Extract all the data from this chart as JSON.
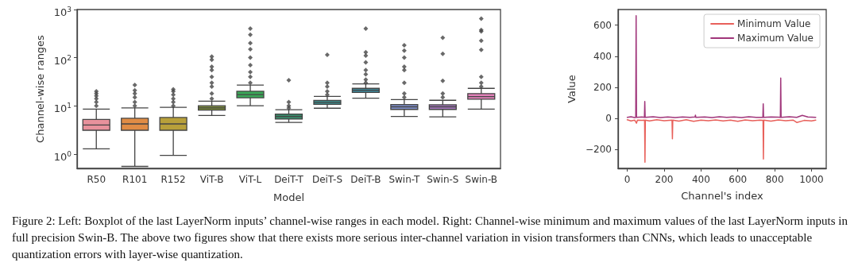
{
  "chart_data": [
    {
      "type": "box",
      "xlabel": "Model",
      "ylabel": "Channel-wise ranges",
      "log": true,
      "legend": false,
      "grid": false,
      "categories": [
        "R50",
        "R101",
        "R152",
        "ViT-B",
        "ViT-L",
        "DeiT-T",
        "DeiT-S",
        "DeiT-B",
        "Swin-T",
        "Swin-S",
        "Swin-B"
      ],
      "colors": [
        "#e8929c",
        "#e08c45",
        "#b8a03a",
        "#7a8a3a",
        "#3aa858",
        "#3a8a6a",
        "#3b8c8c",
        "#3d8a9c",
        "#8090cc",
        "#a878c0",
        "#e080b8"
      ],
      "ylim": [
        0.5,
        1000
      ],
      "yticks": [
        {
          "value": 1,
          "label": "10$^{0}$"
        },
        {
          "value": 10,
          "label": "10$^{1}$"
        },
        {
          "value": 100,
          "label": "10$^{2}$"
        },
        {
          "value": 1000,
          "label": "10$^{3}$"
        }
      ],
      "boxes": [
        {
          "low": 1.27,
          "q1": 3.1,
          "median": 4.0,
          "q3": 5.2,
          "high": 8.5,
          "outliers": [
            10,
            12,
            14,
            16,
            18,
            20
          ]
        },
        {
          "low": 0.55,
          "q1": 3.1,
          "median": 4.2,
          "q3": 5.5,
          "high": 9.0,
          "outliers": [
            10,
            12,
            15,
            18,
            21,
            27
          ]
        },
        {
          "low": 0.93,
          "q1": 3.1,
          "median": 4.2,
          "q3": 5.7,
          "high": 9.3,
          "outliers": [
            10,
            12,
            14,
            17,
            20,
            22
          ]
        },
        {
          "low": 6.3,
          "q1": 8.1,
          "median": 9.0,
          "q3": 10,
          "high": 12.5,
          "outliers": [
            14,
            18,
            25,
            30,
            40,
            55,
            65,
            90,
            105
          ]
        },
        {
          "low": 10,
          "q1": 14.7,
          "median": 17,
          "q3": 20,
          "high": 27,
          "outliers": [
            30,
            40,
            50,
            70,
            100,
            150,
            200,
            300,
            400
          ]
        },
        {
          "low": 4.5,
          "q1": 5.3,
          "median": 6.0,
          "q3": 6.7,
          "high": 8.3,
          "outliers": [
            9,
            10,
            12,
            34
          ]
        },
        {
          "low": 8.9,
          "q1": 10.7,
          "median": 11.8,
          "q3": 12.9,
          "high": 15.7,
          "outliers": [
            17,
            20,
            25,
            30,
            115
          ]
        },
        {
          "low": 14.4,
          "q1": 19,
          "median": 21,
          "q3": 23,
          "high": 28.5,
          "outliers": [
            30,
            35,
            45,
            55,
            80,
            110,
            130,
            400
          ]
        },
        {
          "low": 6.0,
          "q1": 8.4,
          "median": 9.5,
          "q3": 10.6,
          "high": 13.5,
          "outliers": [
            15,
            18,
            30,
            55,
            65,
            100,
            140,
            180
          ]
        },
        {
          "low": 5.9,
          "q1": 8.4,
          "median": 9.5,
          "q3": 10.5,
          "high": 13,
          "outliers": [
            15,
            18,
            33,
            120,
            260
          ]
        },
        {
          "low": 8.5,
          "q1": 13.7,
          "median": 15.5,
          "q3": 17.9,
          "high": 23,
          "outliers": [
            25,
            30,
            40,
            145,
            225,
            350,
            375,
            645
          ]
        }
      ],
      "annotations": [
        "Figure 2: Left: Boxplot of the last LayerNorm inputs’ channel-wise ranges in each model. Right: Channel-wise minimum and maximum values of the last LayerNorm inputs in full precision Swin-B. The above two figures show that there exists more serious inter-channel variation in vision transformers than CNNs, which leads to unacceptable quantization errors with layer-wise quantization."
      ]
    },
    {
      "type": "line",
      "xlabel": "Channel's index",
      "ylabel": "Value",
      "legend": "top right",
      "grid": false,
      "marker": "none",
      "line_style": "solid",
      "xlim": [
        -50,
        1080
      ],
      "xticks": [
        0,
        200,
        400,
        600,
        800,
        1000
      ],
      "ylim": [
        -320,
        700
      ],
      "yticks": [
        -200,
        0,
        200,
        400,
        600
      ],
      "series": [
        {
          "name": "Minimum Value",
          "color": "#e8605a",
          "x": [
            0,
            20,
            40,
            50,
            55,
            80,
            94,
            96,
            98,
            120,
            160,
            200,
            243,
            245,
            247,
            280,
            320,
            360,
            400,
            440,
            480,
            520,
            560,
            600,
            640,
            680,
            720,
            737,
            739,
            741,
            780,
            820,
            860,
            900,
            920,
            960,
            1000,
            1023
          ],
          "values": [
            -8,
            -15,
            -10,
            -30,
            -10,
            -12,
            -10,
            -280,
            -10,
            -15,
            -8,
            -14,
            -10,
            -130,
            -10,
            -16,
            -8,
            -18,
            -10,
            -14,
            -9,
            -15,
            -10,
            -18,
            -9,
            -14,
            -10,
            -12,
            -260,
            -10,
            -16,
            -9,
            -14,
            -10,
            -25,
            -12,
            -15,
            -10
          ]
        },
        {
          "name": "Maximum Value",
          "color": "#a0357a",
          "x": [
            0,
            20,
            40,
            46,
            48,
            50,
            80,
            93,
            95,
            97,
            140,
            180,
            220,
            260,
            300,
            340,
            368,
            370,
            372,
            420,
            460,
            500,
            540,
            580,
            620,
            660,
            700,
            736,
            738,
            740,
            780,
            820,
            831,
            833,
            835,
            880,
            920,
            950,
            980,
            1023
          ],
          "values": [
            8,
            12,
            6,
            8,
            660,
            8,
            10,
            8,
            110,
            8,
            12,
            6,
            10,
            7,
            10,
            8,
            10,
            22,
            8,
            10,
            6,
            12,
            8,
            10,
            6,
            11,
            8,
            8,
            95,
            8,
            10,
            9,
            8,
            260,
            8,
            12,
            8,
            20,
            10,
            8
          ]
        }
      ]
    }
  ]
}
